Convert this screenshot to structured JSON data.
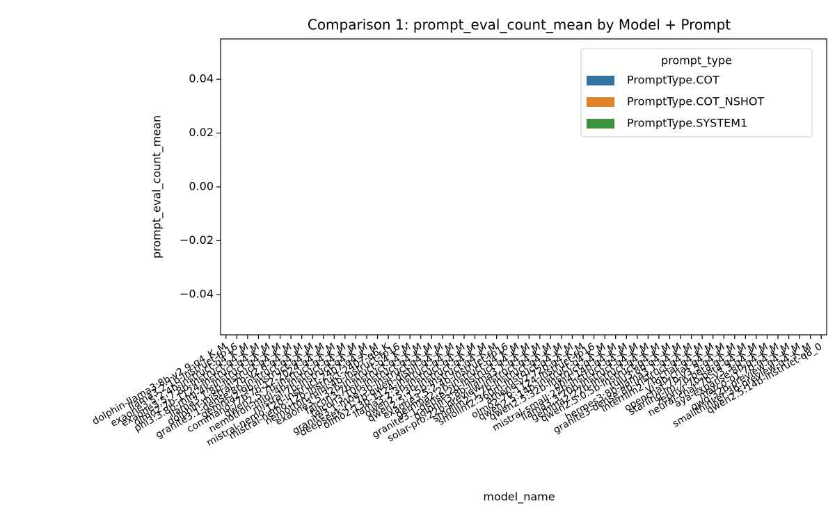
{
  "chart_data": {
    "type": "bar",
    "title": "Comparison 1: prompt_eval_count_mean by Model + Prompt",
    "xlabel": "model_name",
    "ylabel": "prompt_eval_count_mean",
    "legend_title": "prompt_type",
    "legend": "upper right",
    "categories": [
      "dolphin-llama3:8b-v2.9-q4_K_M",
      "llama3.2:1b-instruct-fp16",
      "exaone3.5:2.4b-instruct-q4_K_M",
      "exaone3.5:7.8b-instruct-q4_K_M",
      "olmo2:7b-1124-instruct-q4_K_M",
      "phi3:3.8b-mini-4k-instruct-q4_K_M",
      "llama3.1:8b-instruct-q4_K_M",
      "dolphin-mistral:7b-v2.6-q4_K_M",
      "granite3.1-dense:8b-instruct-q4_K_M",
      "gemma2:9b-instruct-q4_K_M",
      "command-r7b:7b-12-2024-q4_K_M",
      "qwen2.5:7b-instruct-q4_K_M",
      "nemotron-mini:4b-instruct-q4_K_M",
      "mistral:7b-instruct-q4_K_M",
      "mistral-nemo:12b-instruct-2407-q4_K_M",
      "mistral-nemo:12b-instruct-2407-q6_K",
      "nemotron-mini:4b-instruct-fp16",
      "exaone3.5:32b-instruct-q4_K_M",
      "falcon3:7b-instruct-q4_K_M",
      "falcon3:10b-instruct-q4_K_M",
      "granite3.1-moe:3b-instruct-q4_K_M",
      "deepseek-r1:7b-qwen-distill-q4_K_M",
      "olmo2:13b-1124-instruct-q4_K_M",
      "llama3.2:3b-instruct-q4_K_M",
      "qwen2.5:3b-instruct-q4_K_M",
      "qwen2.5:1.5b-instruct-q4_K_M",
      "exaone3.5:2.4b-instruct-fp16",
      "gemma2:2b-instruct-q4_K_M",
      "granite3.1-dense:2b-instruct-q4_K_M",
      "dolphin3:8b-llama3.1-q4_K_M",
      "solar-pro:22b-preview-instruct-q4_K_M",
      "smollm2:1.7b-instruct-q4_K_M",
      "smollm2:360m-instruct-q4_K_M",
      "athene-v2:72b-q4_K_M",
      "olmo2:7b-1124-instruct-fp16",
      "qwen2.5:14b-instruct-q4_K_M",
      "qwen2.5:32b-instruct-q4_K_M",
      "phi4:14b-q4_K_M",
      "mistral-small:22b-instruct-q4_K_M",
      "llama3.3:70b-instruct-q4_K_M",
      "gemma2:27b-instruct-q4_K_M",
      "qwen2.5:0.5b-instruct-q4_K_M",
      "tulu3:8b-q4_K_M",
      "hermes3:8b-llama3.1-q4_K_M",
      "granite3-dense:8b-instruct-q4_K_M",
      "internlm2:7b-chat-q4_K_M",
      "yi:9b-chat-q4_K_M",
      "openchat:7b-v3.5-q4_K_M",
      "starling-lm:7b-beta-q4_K_M",
      "zephyr:7b-beta-q4_K_M",
      "neural-chat:7b-v3.3-q4_K_M",
      "aya-expanse:8b-q4_K_M",
      "marco-o1:7b-q4_K_M",
      "qwq:32b-preview-q4_K_M",
      "smallthinker:3b-preview-q4_K_M",
      "qwen2.5:14b-instruct-q8_0"
    ],
    "series": [
      {
        "name": "PromptType.COT",
        "color": "#3274a1",
        "values": [
          null,
          null,
          null,
          null,
          null,
          null,
          null,
          null,
          null,
          null,
          null,
          null,
          null,
          null,
          null,
          null,
          null,
          null,
          null,
          null,
          null,
          null,
          null,
          null,
          null,
          null,
          null,
          null,
          null,
          null,
          null,
          null,
          null,
          null,
          null,
          null,
          null,
          null,
          null,
          null,
          null,
          null,
          null,
          null,
          null,
          null,
          null,
          null,
          null,
          null,
          null,
          null,
          null,
          null,
          null,
          null
        ]
      },
      {
        "name": "PromptType.COT_NSHOT",
        "color": "#e1812c",
        "values": [
          null,
          null,
          null,
          null,
          null,
          null,
          null,
          null,
          null,
          null,
          null,
          null,
          null,
          null,
          null,
          null,
          null,
          null,
          null,
          null,
          null,
          null,
          null,
          null,
          null,
          null,
          null,
          null,
          null,
          null,
          null,
          null,
          null,
          null,
          null,
          null,
          null,
          null,
          null,
          null,
          null,
          null,
          null,
          null,
          null,
          null,
          null,
          null,
          null,
          null,
          null,
          null,
          null,
          null,
          null,
          null
        ]
      },
      {
        "name": "PromptType.SYSTEM1",
        "color": "#3a923a",
        "values": [
          null,
          null,
          null,
          null,
          null,
          null,
          null,
          null,
          null,
          null,
          null,
          null,
          null,
          null,
          null,
          null,
          null,
          null,
          null,
          null,
          null,
          null,
          null,
          null,
          null,
          null,
          null,
          null,
          null,
          null,
          null,
          null,
          null,
          null,
          null,
          null,
          null,
          null,
          null,
          null,
          null,
          null,
          null,
          null,
          null,
          null,
          null,
          null,
          null,
          null,
          null,
          null,
          null,
          null,
          null,
          null
        ]
      }
    ],
    "ylim": [
      -0.055,
      0.055
    ],
    "yticks": [
      {
        "value": -0.04,
        "label": "−0.04"
      },
      {
        "value": -0.02,
        "label": "−0.02"
      },
      {
        "value": 0,
        "label": "0.00"
      },
      {
        "value": 0.02,
        "label": "0.02"
      },
      {
        "value": 0.04,
        "label": "0.04"
      }
    ]
  }
}
